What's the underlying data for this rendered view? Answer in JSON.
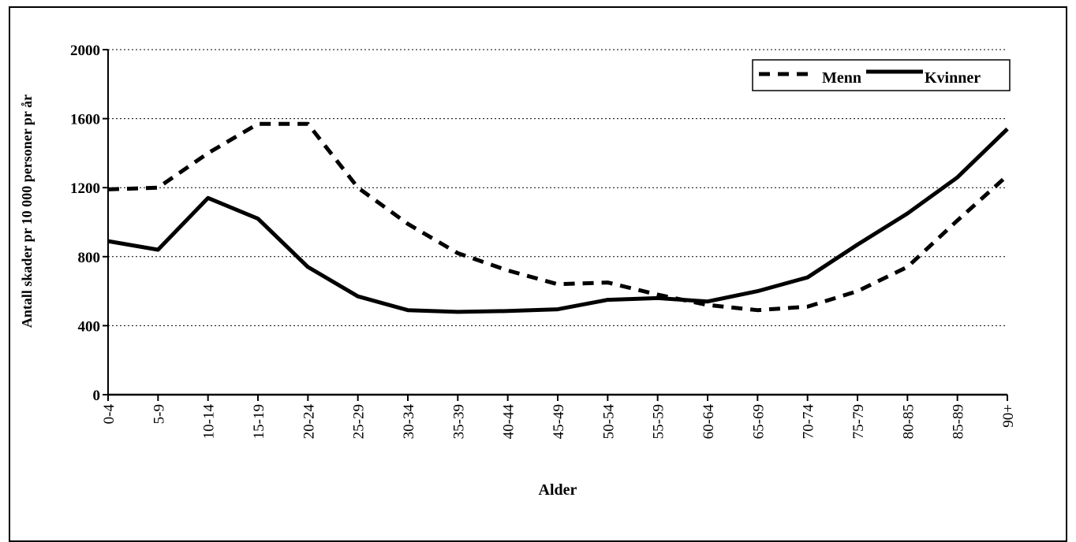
{
  "chart_data": {
    "type": "line",
    "title": "",
    "xlabel": "Alder",
    "ylabel": "Antall skader pr 10 000 personer pr år",
    "categories": [
      "0-4",
      "5-9",
      "10-14",
      "15-19",
      "20-24",
      "25-29",
      "30-34",
      "35-39",
      "40-44",
      "45-49",
      "50-54",
      "55-59",
      "60-64",
      "65-69",
      "70-74",
      "75-79",
      "80-85",
      "85-89",
      "90+"
    ],
    "ylim": [
      0,
      2000
    ],
    "yticks": [
      0,
      400,
      800,
      1200,
      1600,
      2000
    ],
    "grid": "horizontal dotted",
    "legend_position": "top-right",
    "series": [
      {
        "name": "Menn",
        "style": "dashed",
        "color": "#000000",
        "values": [
          1190,
          1200,
          1400,
          1570,
          1570,
          1200,
          990,
          820,
          720,
          640,
          650,
          580,
          520,
          490,
          510,
          600,
          740,
          1010,
          1270
        ]
      },
      {
        "name": "Kvinner",
        "style": "solid",
        "color": "#000000",
        "values": [
          890,
          840,
          1140,
          1020,
          740,
          570,
          490,
          480,
          485,
          495,
          550,
          560,
          540,
          600,
          680,
          870,
          1050,
          1260,
          1540
        ]
      }
    ]
  }
}
